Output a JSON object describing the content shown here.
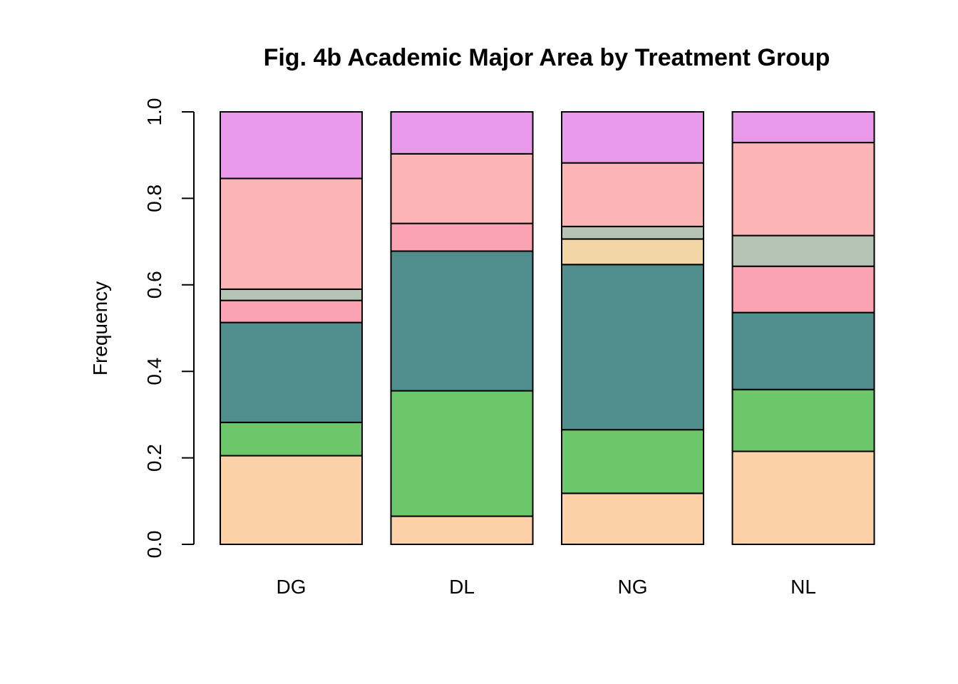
{
  "chart_data": {
    "type": "bar",
    "stacked": true,
    "title": "Fig. 4b Academic Major Area by Treatment Group",
    "xlabel": "",
    "ylabel": "Frequency",
    "ylim": [
      0,
      1
    ],
    "yticks": [
      "0.0",
      "0.2",
      "0.4",
      "0.6",
      "0.8",
      "1.0"
    ],
    "grid": false,
    "categories": [
      "DG",
      "DL",
      "NG",
      "NL"
    ],
    "series": [
      {
        "color": "#FDD1A8",
        "values": [
          0.205,
          0.065,
          0.118,
          0.215
        ]
      },
      {
        "color": "#6CC66A",
        "values": [
          0.077,
          0.29,
          0.147,
          0.143
        ]
      },
      {
        "color": "#4F8E8C",
        "values": [
          0.231,
          0.323,
          0.382,
          0.178
        ]
      },
      {
        "color": "#FCA3B3",
        "values": [
          0.051,
          0.064,
          0.0,
          0.107
        ]
      },
      {
        "color": "#F1D5A5",
        "values": [
          0.0,
          0.0,
          0.059,
          0.0
        ]
      },
      {
        "color": "#B5C4B4",
        "values": [
          0.026,
          0.0,
          0.029,
          0.071
        ]
      },
      {
        "color": "#FCB4B4",
        "values": [
          0.256,
          0.161,
          0.147,
          0.215
        ]
      },
      {
        "color": "#E899E9",
        "values": [
          0.154,
          0.097,
          0.118,
          0.071
        ]
      }
    ]
  }
}
